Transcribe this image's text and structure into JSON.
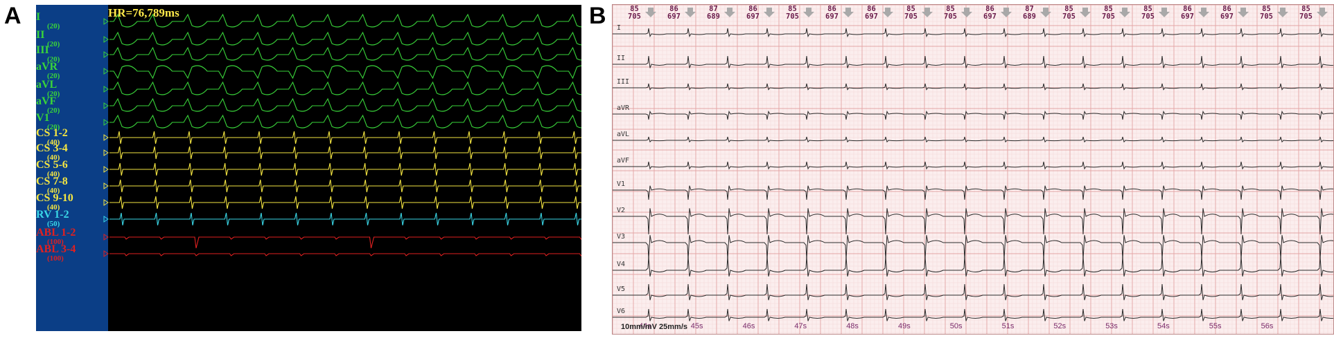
{
  "panel_a": {
    "label": "A",
    "hr_text": "HR=76,789ms",
    "leads": [
      {
        "name": "I",
        "gain": "(20)",
        "color": "#39d43a"
      },
      {
        "name": "II",
        "gain": "(20)",
        "color": "#39d43a"
      },
      {
        "name": "III",
        "gain": "(20)",
        "color": "#39d43a"
      },
      {
        "name": "aVR",
        "gain": "(20)",
        "color": "#39d43a"
      },
      {
        "name": "aVL",
        "gain": "(20)",
        "color": "#39d43a"
      },
      {
        "name": "aVF",
        "gain": "(20)",
        "color": "#39d43a"
      },
      {
        "name": "V1",
        "gain": "(20)",
        "color": "#39d43a"
      },
      {
        "name": "CS 1-2",
        "gain": "(40)",
        "color": "#f5e642"
      },
      {
        "name": "CS 3-4",
        "gain": "(40)",
        "color": "#f5e642"
      },
      {
        "name": "CS 5-6",
        "gain": "(40)",
        "color": "#f5e642"
      },
      {
        "name": "CS 7-8",
        "gain": "(40)",
        "color": "#f5e642"
      },
      {
        "name": "CS 9-10",
        "gain": "(40)",
        "color": "#f5e642"
      },
      {
        "name": "RV 1-2",
        "gain": "(50)",
        "color": "#3ad8e8"
      },
      {
        "name": "ABL 1-2",
        "gain": "(100)",
        "color": "#e02020"
      },
      {
        "name": "ABL 3-4",
        "gain": "(100)",
        "color": "#e02020"
      }
    ]
  },
  "panel_b": {
    "label": "B",
    "leads": [
      "I",
      "II",
      "III",
      "aVR",
      "aVL",
      "aVF",
      "V1",
      "V2",
      "V3",
      "V4",
      "V5",
      "V6"
    ],
    "measurements": [
      {
        "rate": "85",
        "interval": "705"
      },
      {
        "rate": "86",
        "interval": "697"
      },
      {
        "rate": "87",
        "interval": "689"
      },
      {
        "rate": "86",
        "interval": "697"
      },
      {
        "rate": "85",
        "interval": "705"
      },
      {
        "rate": "86",
        "interval": "697"
      },
      {
        "rate": "86",
        "interval": "697"
      },
      {
        "rate": "85",
        "interval": "705"
      },
      {
        "rate": "85",
        "interval": "705"
      },
      {
        "rate": "86",
        "interval": "697"
      },
      {
        "rate": "87",
        "interval": "689"
      },
      {
        "rate": "85",
        "interval": "705"
      },
      {
        "rate": "85",
        "interval": "705"
      },
      {
        "rate": "85",
        "interval": "705"
      },
      {
        "rate": "86",
        "interval": "697"
      },
      {
        "rate": "86",
        "interval": "697"
      },
      {
        "rate": "85",
        "interval": "705"
      },
      {
        "rate": "85",
        "interval": "705"
      }
    ],
    "time_labels": [
      "44s",
      "45s",
      "46s",
      "47s",
      "48s",
      "49s",
      "50s",
      "51s",
      "52s",
      "53s",
      "54s",
      "55s",
      "56s"
    ],
    "calibration": "10mm/mV  25mm/s",
    "colors": {
      "grid_major": "#e3a5a5",
      "grid_minor": "#f3d6d6",
      "trace": "#2a2a2a",
      "arrow": "#a9a9a9"
    }
  }
}
